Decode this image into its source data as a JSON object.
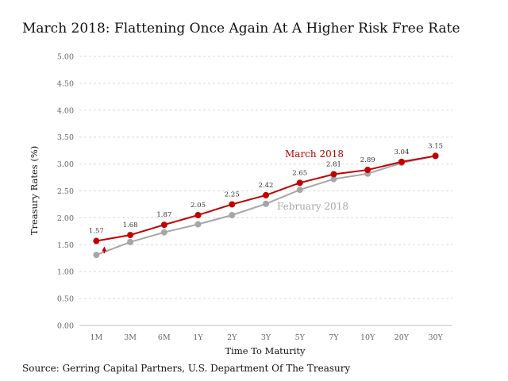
{
  "chart_data": {
    "type": "line",
    "title": "March 2018: Flattening Once Again At A Higher Risk Free Rate",
    "xlabel": "Time To Maturity",
    "ylabel": "Treasury Rates (%)",
    "ylim": [
      0,
      5
    ],
    "yticks": [
      "0.00",
      "0.50",
      "1.00",
      "1.50",
      "2.00",
      "2.50",
      "3.00",
      "3.50",
      "4.00",
      "4.50",
      "5.00"
    ],
    "grid": true,
    "categories": [
      "1M",
      "3M",
      "6M",
      "1Y",
      "2Y",
      "3Y",
      "5Y",
      "7Y",
      "10Y",
      "20Y",
      "30Y"
    ],
    "series": [
      {
        "name": "March 2018",
        "color": "#c00000",
        "values": [
          1.57,
          1.68,
          1.87,
          2.05,
          2.25,
          2.42,
          2.65,
          2.81,
          2.89,
          3.04,
          3.15
        ],
        "data_labels": [
          "1.57",
          "1.68",
          "1.87",
          "2.05",
          "2.25",
          "2.42",
          "2.65",
          "2.81",
          "2.89",
          "3.04",
          "3.15"
        ]
      },
      {
        "name": "February 2018",
        "color": "#a6a6a6",
        "values": [
          1.31,
          1.55,
          1.73,
          1.88,
          2.05,
          2.26,
          2.52,
          2.72,
          2.82,
          3.02,
          3.15
        ]
      }
    ],
    "annotation": {
      "type": "arrow-up",
      "category": "1M",
      "color": "#c00000"
    }
  },
  "source": "Source: Gerring Capital Partners, U.S. Department Of The Treasury"
}
